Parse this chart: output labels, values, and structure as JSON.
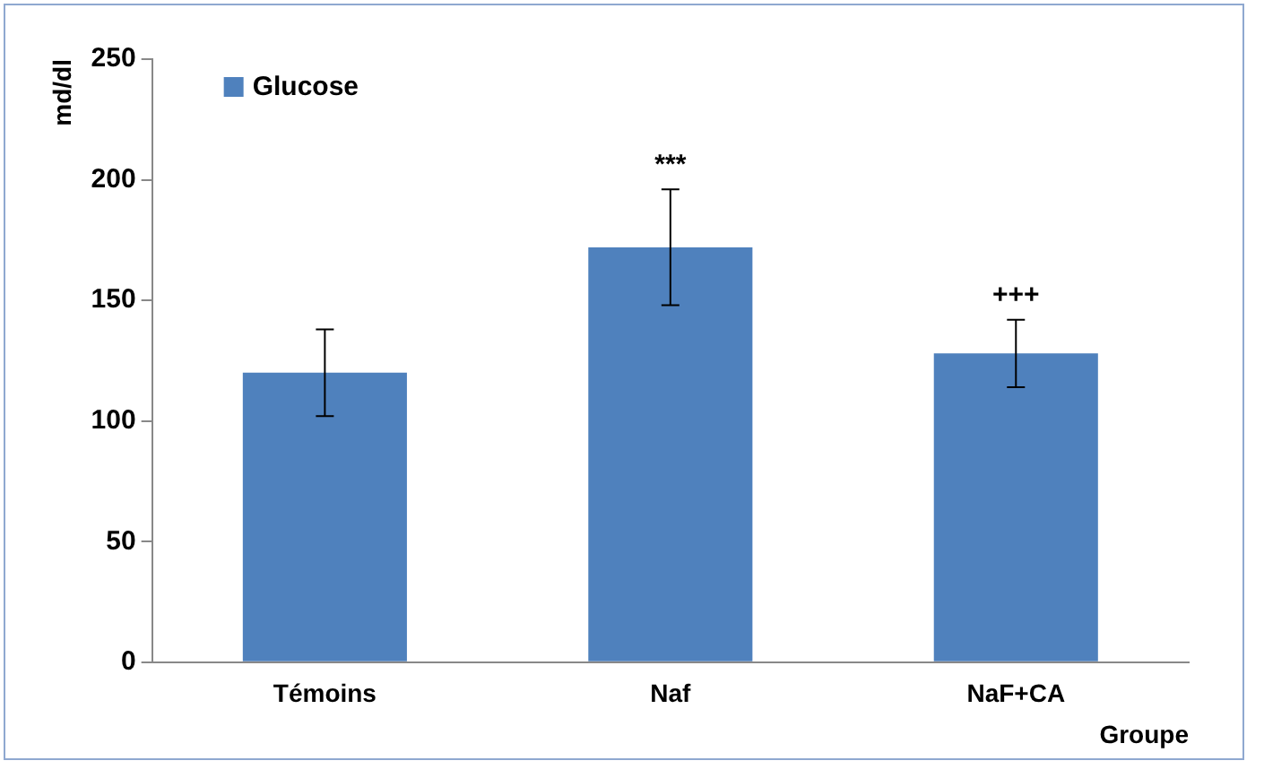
{
  "chart_data": {
    "type": "bar",
    "ylabel": "md/dl",
    "xlabel": "Groupe",
    "categories": [
      "Témoins",
      "Naf",
      "NaF+CA"
    ],
    "series": [
      {
        "name": "Glucose",
        "color": "#4f81bd",
        "values": [
          120,
          172,
          128
        ],
        "errors": [
          18,
          24,
          14
        ]
      }
    ],
    "ylim": [
      0,
      250
    ],
    "yticks": [
      0,
      50,
      100,
      150,
      200,
      250
    ],
    "grid": false,
    "legend": "top left",
    "annotations": [
      {
        "text": "***",
        "x": "Naf",
        "y": 196
      },
      {
        "text": "+++",
        "x": "NaF+CA",
        "y": 142
      }
    ]
  }
}
